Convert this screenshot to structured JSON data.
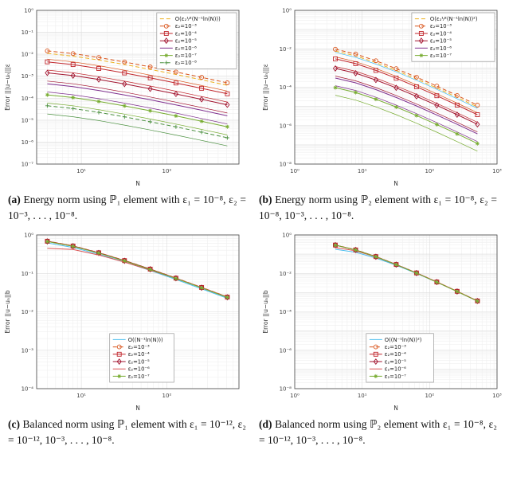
{
  "figure": {
    "background": "#ffffff"
  },
  "captions": {
    "a": {
      "tag": "(a)",
      "text": "Energy norm using ℙ₁ element with ε₁ = 10⁻⁸, ε₂ = 10⁻³, . . . , 10⁻⁸."
    },
    "b": {
      "tag": "(b)",
      "text": "Energy norm using ℙ₂ element with ε₁ = 10⁻⁸, ε₂ = 10⁻⁸, 10⁻³, . . . , 10⁻⁸."
    },
    "c": {
      "tag": "(c)",
      "text": "Balanced norm using ℙ₁ element with ε₁ = 10⁻¹², ε₂ = 10⁻¹², 10⁻³, . . . , 10⁻⁸."
    },
    "d": {
      "tag": "(d)",
      "text": "Balanced norm using ℙ₂ element with ε₁ = 10⁻⁸, ε₂ = 10⁻¹², 10⁻³, . . . , 10⁻⁸."
    }
  },
  "chart_data": [
    {
      "id": "a",
      "type": "line",
      "xlabel": "N",
      "ylabel": "Error |||u−uₙ|||ε",
      "xlim": [
        3,
        700
      ],
      "ylim": [
        1e-07,
        1
      ],
      "xticks": [
        [
          10,
          "10¹"
        ],
        [
          100,
          "10²"
        ]
      ],
      "yticks": [
        [
          1,
          "10⁰"
        ],
        [
          0.1,
          "10⁻¹"
        ],
        [
          0.01,
          "10⁻²"
        ],
        [
          0.001,
          "10⁻³"
        ],
        [
          0.0001,
          "10⁻⁴"
        ],
        [
          1e-05,
          "10⁻⁵"
        ],
        [
          1e-06,
          "10⁻⁶"
        ],
        [
          1e-07,
          "10⁻⁷"
        ]
      ],
      "legend": "tr",
      "grid": true,
      "x": [
        4,
        8,
        16,
        32,
        64,
        128,
        256,
        512
      ],
      "series": [
        {
          "label": "O(ε₂¹⁄²(N⁻¹ln(N)))",
          "color": "#EDB120",
          "dash": "dash",
          "values": [
            0.011,
            0.00822,
            0.00548,
            0.00343,
            0.00205,
            0.0012,
            0.000685,
            0.000385
          ]
        },
        {
          "label": "ε₂=10⁻³",
          "color": "#D95319",
          "marker": "o",
          "dash": "dash",
          "values": [
            0.0142,
            0.0107,
            0.00712,
            0.00445,
            0.00267,
            0.00156,
            0.00089,
            0.0005
          ]
        },
        {
          "color": "#D95319",
          "thin": true,
          "values": [
            0.006,
            0.00452,
            0.00301,
            0.00188,
            0.00113,
            0.00066,
            0.000377,
            0.000212
          ]
        },
        {
          "label": "ε₂=10⁻⁴",
          "color": "#C1272D",
          "marker": "s",
          "values": [
            0.00451,
            0.00338,
            0.00225,
            0.00141,
            0.000845,
            0.000493,
            0.000282,
            0.000158
          ]
        },
        {
          "color": "#C1272D",
          "thin": true,
          "values": [
            0.00191,
            0.00143,
            0.000953,
            0.000596,
            0.000357,
            0.000209,
            0.000119,
            6.7e-05
          ]
        },
        {
          "label": "ε₂=10⁻⁵",
          "color": "#A2142F",
          "marker": "d",
          "values": [
            0.00142,
            0.00107,
            0.000712,
            0.000445,
            0.000267,
            0.000156,
            8.9e-05,
            5e-05
          ]
        },
        {
          "color": "#A2142F",
          "thin": true,
          "values": [
            0.0006,
            0.000452,
            0.000301,
            0.000188,
            0.000113,
            6.6e-05,
            3.77e-05,
            2.12e-05
          ]
        },
        {
          "label": "ε₂=10⁻⁶",
          "color": "#7E2F8E",
          "values": [
            0.000451,
            0.000338,
            0.000225,
            0.000141,
            8.45e-05,
            4.93e-05,
            2.82e-05,
            1.58e-05
          ]
        },
        {
          "color": "#7E2F8E",
          "thin": true,
          "values": [
            0.000191,
            0.000143,
            9.53e-05,
            5.96e-05,
            3.57e-05,
            2.09e-05,
            1.19e-05,
            6.7e-06
          ]
        },
        {
          "label": "ε₂=10⁻⁷",
          "color": "#77AC30",
          "marker": "*",
          "values": [
            0.000142,
            0.000107,
            7.12e-05,
            4.45e-05,
            2.67e-05,
            1.56e-05,
            8.9e-06,
            5e-06
          ]
        },
        {
          "color": "#77AC30",
          "thin": true,
          "values": [
            6e-05,
            4.52e-05,
            3.01e-05,
            1.88e-05,
            1.13e-05,
            6.6e-06,
            3.77e-06,
            2.12e-06
          ]
        },
        {
          "label": "ε₂=10⁻⁸",
          "color": "#4C9141",
          "marker": "+",
          "dash": "dash",
          "values": [
            4.51e-05,
            3.38e-05,
            2.25e-05,
            1.41e-05,
            8.45e-06,
            4.93e-06,
            2.82e-06,
            1.58e-06
          ]
        },
        {
          "color": "#4C9141",
          "thin": true,
          "values": [
            1.91e-05,
            1.43e-05,
            9.53e-06,
            5.96e-06,
            3.57e-06,
            2.09e-06,
            1.19e-06,
            6.7e-07
          ]
        }
      ]
    },
    {
      "id": "b",
      "type": "line",
      "xlabel": "N",
      "ylabel": "Error |||u−uₙ|||ε",
      "xlim": [
        1,
        1000
      ],
      "ylim": [
        1e-08,
        1
      ],
      "xticks": [
        [
          1,
          "10⁰"
        ],
        [
          10,
          "10¹"
        ],
        [
          100,
          "10²"
        ],
        [
          1000,
          "10³"
        ]
      ],
      "yticks": [
        [
          1,
          "10⁰"
        ],
        [
          0.01,
          "10⁻²"
        ],
        [
          0.0001,
          "10⁻⁴"
        ],
        [
          1e-06,
          "10⁻⁶"
        ],
        [
          1e-08,
          "10⁻⁸"
        ]
      ],
      "legend": "tr",
      "grid": true,
      "x": [
        4,
        8,
        16,
        32,
        64,
        128,
        256,
        512
      ],
      "series": [
        {
          "color": "#4DBEEE",
          "thin": true,
          "values": [
            0.0065,
            0.0036,
            0.0016,
            0.00063,
            0.00023,
            7.7e-05,
            2.5e-05,
            8e-06
          ]
        },
        {
          "label": "O(ε₂¹⁄²(N⁻¹ln(N))²)",
          "color": "#EDB120",
          "dash": "dash",
          "values": [
            0.0076,
            0.00427,
            0.0019,
            0.000742,
            0.000267,
            9.09e-05,
            2.97e-05,
            9.39e-06
          ]
        },
        {
          "label": "ε₂=10⁻³",
          "color": "#D95319",
          "marker": "o",
          "dash": "dash",
          "values": [
            0.0095,
            0.00534,
            0.00237,
            0.000927,
            0.000334,
            0.000114,
            3.71e-05,
            1.17e-05
          ]
        },
        {
          "color": "#D95319",
          "thin": true,
          "values": [
            0.0038,
            0.00214,
            0.00095,
            0.000371,
            0.000134,
            4.54e-05,
            1.48e-05,
            4.69e-06
          ]
        },
        {
          "label": "ε₂=10⁻⁴",
          "color": "#C1272D",
          "marker": "s",
          "values": [
            0.003,
            0.00169,
            0.000751,
            0.000293,
            0.000106,
            3.59e-05,
            1.17e-05,
            3.71e-06
          ]
        },
        {
          "color": "#C1272D",
          "thin": true,
          "values": [
            0.0012,
            0.000676,
            0.0003,
            0.000117,
            4.22e-05,
            1.44e-05,
            4.69e-06,
            1.48e-06
          ]
        },
        {
          "label": "ε₂=10⁻⁵",
          "color": "#A2142F",
          "marker": "d",
          "values": [
            0.00095,
            0.000534,
            0.000237,
            9.27e-05,
            3.34e-05,
            1.14e-05,
            3.71e-06,
            1.17e-06
          ]
        },
        {
          "color": "#A2142F",
          "thin": true,
          "values": [
            0.00038,
            0.000214,
            9.5e-05,
            3.71e-05,
            1.34e-05,
            4.54e-06,
            1.48e-06,
            4.69e-07
          ]
        },
        {
          "label": "ε₂=10⁻⁶",
          "color": "#7E2F8E",
          "values": [
            0.0003,
            0.000169,
            7.51e-05,
            2.93e-05,
            1.06e-05,
            3.59e-06,
            1.17e-06,
            3.71e-07
          ]
        },
        {
          "color": "#7E2F8E",
          "thin": true,
          "values": [
            0.00012,
            6.76e-05,
            3e-05,
            1.17e-05,
            4.22e-06,
            1.44e-06,
            4.69e-07,
            1.48e-07
          ]
        },
        {
          "label": "ε₂=10⁻⁷",
          "color": "#77AC30",
          "marker": "*",
          "values": [
            9.5e-05,
            5.34e-05,
            2.37e-05,
            9.27e-06,
            3.34e-06,
            1.14e-06,
            3.71e-07,
            1.17e-07
          ]
        },
        {
          "color": "#77AC30",
          "thin": true,
          "values": [
            3.8e-05,
            2.14e-05,
            9.5e-06,
            3.71e-06,
            1.34e-06,
            4.54e-07,
            1.48e-07,
            4.69e-08
          ]
        }
      ]
    },
    {
      "id": "c",
      "type": "line",
      "xlabel": "N",
      "ylabel": "Error ||u−uₙ||b",
      "xlim": [
        3,
        700
      ],
      "ylim": [
        0.0001,
        1
      ],
      "xticks": [
        [
          10,
          "10¹"
        ],
        [
          100,
          "10²"
        ]
      ],
      "yticks": [
        [
          1,
          "10⁰"
        ],
        [
          0.1,
          "10⁻¹"
        ],
        [
          0.01,
          "10⁻²"
        ],
        [
          0.001,
          "10⁻³"
        ],
        [
          0.0001,
          "10⁻⁴"
        ]
      ],
      "legend": "bc",
      "grid": true,
      "x": [
        4,
        8,
        16,
        32,
        64,
        128,
        256,
        512
      ],
      "series": [
        {
          "label": "O((N⁻¹ln(N)))",
          "color": "#4DBEEE",
          "values": [
            0.62,
            0.47,
            0.315,
            0.198,
            0.119,
            0.0695,
            0.0398,
            0.0225
          ]
        },
        {
          "label": "ε₂=10⁻³",
          "color": "#D95319",
          "marker": "o",
          "dash": "dash",
          "values": [
            0.693,
            0.52,
            0.347,
            0.217,
            0.13,
            0.0758,
            0.0433,
            0.0244
          ]
        },
        {
          "label": "ε₂=10⁻⁴",
          "color": "#C1272D",
          "marker": "s",
          "values": [
            0.686,
            0.515,
            0.344,
            0.215,
            0.129,
            0.0751,
            0.0429,
            0.0242
          ]
        },
        {
          "label": "ε₂=10⁻⁵",
          "color": "#A2142F",
          "marker": "d",
          "values": [
            0.679,
            0.51,
            0.34,
            0.213,
            0.128,
            0.0743,
            0.0424,
            0.0239
          ]
        },
        {
          "label": "ε₂=10⁻⁶",
          "color": "#D95353",
          "values": [
            0.45,
            0.42,
            0.3,
            0.196,
            0.122,
            0.0742,
            0.0428,
            0.0242
          ]
        },
        {
          "label": "ε₂=10⁻⁷",
          "color": "#77AC30",
          "marker": "*",
          "values": [
            0.672,
            0.505,
            0.337,
            0.211,
            0.126,
            0.0736,
            0.042,
            0.0237
          ]
        }
      ]
    },
    {
      "id": "d",
      "type": "line",
      "xlabel": "N",
      "ylabel": "Error ||u−uₙ||b",
      "xlim": [
        1,
        1000
      ],
      "ylim": [
        1e-08,
        1
      ],
      "xticks": [
        [
          1,
          "10⁰"
        ],
        [
          10,
          "10¹"
        ],
        [
          100,
          "10²"
        ],
        [
          1000,
          "10³"
        ]
      ],
      "yticks": [
        [
          1,
          "10⁰"
        ],
        [
          0.01,
          "10⁻²"
        ],
        [
          0.0001,
          "10⁻⁴"
        ],
        [
          1e-06,
          "10⁻⁶"
        ],
        [
          1e-08,
          "10⁻⁸"
        ]
      ],
      "legend": "bc",
      "grid": true,
      "x": [
        4,
        8,
        16,
        32,
        64,
        128,
        256,
        512
      ],
      "series": [
        {
          "label": "O((N⁻¹ln(N))²)",
          "color": "#4DBEEE",
          "values": [
            0.18,
            0.125,
            0.063,
            0.0265,
            0.01,
            0.00348,
            0.00115,
            0.000365
          ]
        },
        {
          "label": "ε₂=10⁻³",
          "color": "#D95319",
          "marker": "o",
          "dash": "dash",
          "values": [
            0.3,
            0.169,
            0.0751,
            0.0293,
            0.0106,
            0.00359,
            0.00117,
            0.000371
          ]
        },
        {
          "label": "ε₂=10⁻⁴",
          "color": "#C1272D",
          "marker": "s",
          "values": [
            0.297,
            0.167,
            0.0744,
            0.029,
            0.0105,
            0.00355,
            0.00116,
            0.000367
          ]
        },
        {
          "label": "ε₂=10⁻⁵",
          "color": "#A2142F",
          "marker": "d",
          "values": [
            0.294,
            0.166,
            0.0736,
            0.0287,
            0.0104,
            0.00352,
            0.00115,
            0.000364
          ]
        },
        {
          "label": "ε₂=10⁻⁶",
          "color": "#D95353",
          "values": [
            0.22,
            0.15,
            0.072,
            0.0288,
            0.0105,
            0.00357,
            0.00117,
            0.00037
          ]
        },
        {
          "label": "ε₂=10⁻⁷",
          "color": "#77AC30",
          "marker": "*",
          "values": [
            0.291,
            0.164,
            0.0729,
            0.0284,
            0.0103,
            0.00348,
            0.00114,
            0.00036
          ]
        }
      ]
    }
  ]
}
